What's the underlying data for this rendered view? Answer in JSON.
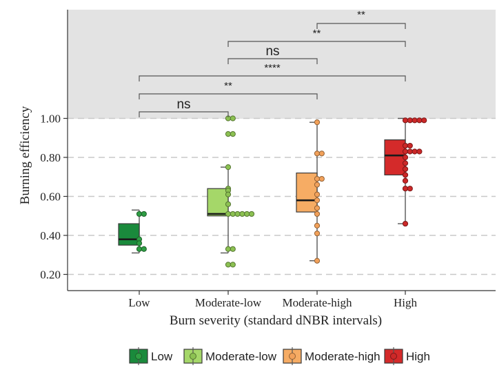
{
  "chart_data": {
    "type": "box",
    "title": "",
    "xlabel": "Burn severity (standard dNBR intervals)",
    "ylabel": "Burning efficiency",
    "categories": [
      "Low",
      "Moderate-low",
      "Moderate-high",
      "High"
    ],
    "yticks": [
      "0.20",
      "0.40",
      "0.60",
      "0.80",
      "1.00"
    ],
    "ytick_values": [
      0.2,
      0.4,
      0.6,
      0.8,
      1.0
    ],
    "ylim": [
      0.17,
      1.0
    ],
    "grid": "horizontal dashed",
    "shaded_region": "above 1.00 (significance annotation area)",
    "series": [
      {
        "name": "Low",
        "color": "#1a8a3c",
        "point_color": "#2e9e44",
        "stats": {
          "min": 0.31,
          "q1": 0.35,
          "median": 0.38,
          "q3": 0.46,
          "max": 0.53
        },
        "points": [
          0.51,
          0.51,
          0.38,
          0.36,
          0.33,
          0.33
        ]
      },
      {
        "name": "Moderate-low",
        "color": "#a5d769",
        "point_color": "#8cc152",
        "stats": {
          "min": 0.31,
          "q1": 0.5,
          "median": 0.51,
          "q3": 0.64,
          "max": 0.75
        },
        "points": [
          1.0,
          1.0,
          0.92,
          0.92,
          0.75,
          0.64,
          0.63,
          0.61,
          0.56,
          0.51,
          0.51,
          0.51,
          0.51,
          0.51,
          0.51,
          0.33,
          0.33,
          0.25,
          0.25
        ]
      },
      {
        "name": "Moderate-high",
        "color": "#f6ac64",
        "point_color": "#f2a15a",
        "stats": {
          "min": 0.27,
          "q1": 0.52,
          "median": 0.58,
          "q3": 0.72,
          "max": 0.98
        },
        "points": [
          0.98,
          0.82,
          0.82,
          0.69,
          0.69,
          0.66,
          0.61,
          0.58,
          0.54,
          0.51,
          0.45,
          0.41,
          0.27
        ]
      },
      {
        "name": "High",
        "color": "#d42a2a",
        "point_color": "#cc2828",
        "stats": {
          "min": 0.46,
          "q1": 0.71,
          "median": 0.81,
          "q3": 0.89,
          "max": 1.0
        },
        "points": [
          0.99,
          0.99,
          0.99,
          0.99,
          0.99,
          0.86,
          0.86,
          0.83,
          0.83,
          0.83,
          0.83,
          0.8,
          0.77,
          0.74,
          0.71,
          0.68,
          0.64,
          0.64,
          0.46
        ]
      }
    ],
    "comparisons": [
      {
        "groups": [
          "Low",
          "Moderate-low"
        ],
        "label": "ns"
      },
      {
        "groups": [
          "Low",
          "Moderate-high"
        ],
        "label": "**"
      },
      {
        "groups": [
          "Low",
          "High"
        ],
        "label": "****"
      },
      {
        "groups": [
          "Moderate-low",
          "Moderate-high"
        ],
        "label": "ns"
      },
      {
        "groups": [
          "Moderate-low",
          "High"
        ],
        "label": "**"
      },
      {
        "groups": [
          "Moderate-high",
          "High"
        ],
        "label": "**"
      }
    ],
    "legend": {
      "position": "bottom",
      "entries": [
        "Low",
        "Moderate-low",
        "Moderate-high",
        "High"
      ]
    }
  }
}
